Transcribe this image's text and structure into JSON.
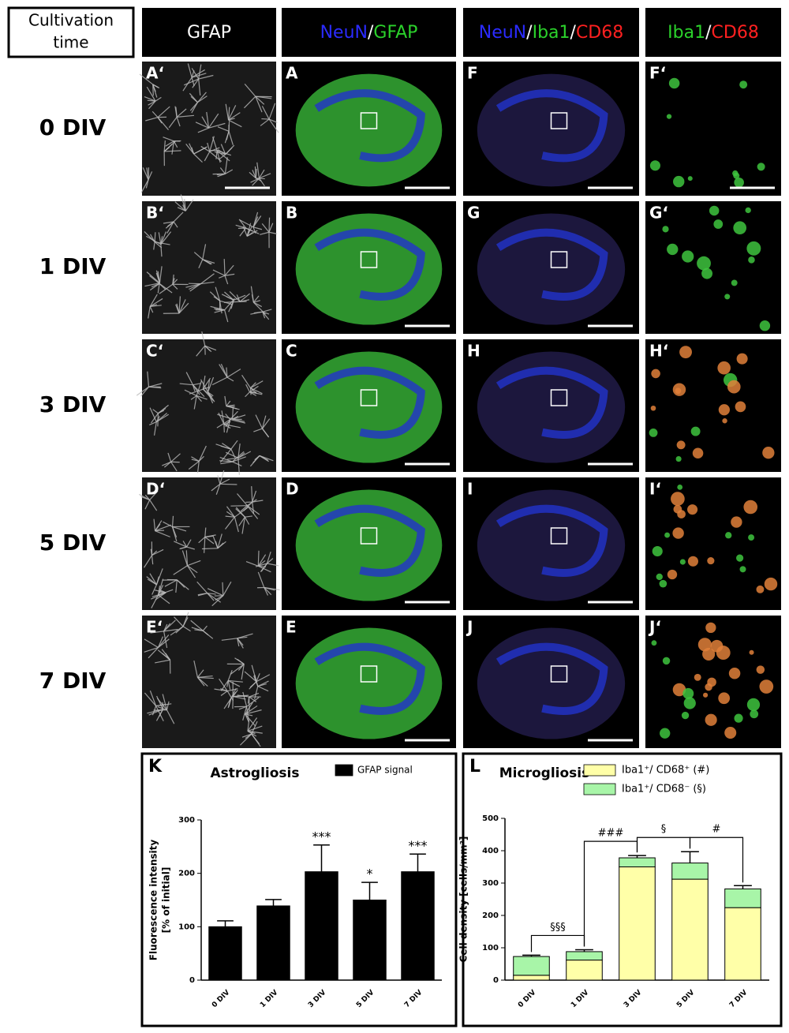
{
  "header": {
    "corner": [
      "Cultivation",
      "time"
    ],
    "columns": [
      [
        {
          "text": "GFAP",
          "color": "#ffffff"
        }
      ],
      [
        {
          "text": "NeuN",
          "color": "#2b2bff"
        },
        {
          "text": "/",
          "color": "#ffffff"
        },
        {
          "text": "GFAP",
          "color": "#2bd12b"
        }
      ],
      [
        {
          "text": "NeuN",
          "color": "#2b2bff"
        },
        {
          "text": "/",
          "color": "#ffffff"
        },
        {
          "text": "Iba1",
          "color": "#2bd12b"
        },
        {
          "text": "/",
          "color": "#ffffff"
        },
        {
          "text": "CD68",
          "color": "#ff2020"
        }
      ],
      [
        {
          "text": "Iba1",
          "color": "#2bd12b"
        },
        {
          "text": "/",
          "color": "#ffffff"
        },
        {
          "text": "CD68",
          "color": "#ff2020"
        }
      ]
    ]
  },
  "rows": [
    {
      "label": "0 DIV",
      "panels": [
        "A‘",
        "A",
        "F",
        "F‘"
      ]
    },
    {
      "label": "1 DIV",
      "panels": [
        "B‘",
        "B",
        "G",
        "G‘"
      ]
    },
    {
      "label": "3 DIV",
      "panels": [
        "C‘",
        "C",
        "H",
        "H‘"
      ]
    },
    {
      "label": "5 DIV",
      "panels": [
        "D‘",
        "D",
        "I",
        "I‘"
      ]
    },
    {
      "label": "7 DIV",
      "panels": [
        "E‘",
        "E",
        "J",
        "J‘"
      ]
    }
  ],
  "chart_data": [
    {
      "type": "bar",
      "panel": "K",
      "title": "Astrogliosis",
      "ylabel": [
        "Fluorescence intensity",
        "[% of initial]"
      ],
      "categories": [
        "0 DIV",
        "1 DIV",
        "3 DIV",
        "5 DIV",
        "7 DIV"
      ],
      "series": [
        {
          "name": "GFAP signal",
          "color": "#000000",
          "values": [
            100,
            139,
            203,
            150,
            203
          ],
          "errors": [
            11,
            12,
            50,
            33,
            33
          ]
        }
      ],
      "annotations": [
        null,
        null,
        "***",
        "*",
        "***"
      ],
      "ylim": [
        0,
        300
      ],
      "yticks": [
        0,
        100,
        200,
        300
      ]
    },
    {
      "type": "stacked_bar",
      "panel": "L",
      "title": "Microgliosis",
      "ylabel": [
        "Cell density [cells/mm²]"
      ],
      "categories": [
        "0 DIV",
        "1 DIV",
        "3 DIV",
        "5 DIV",
        "7 DIV"
      ],
      "series": [
        {
          "name": "Iba1⁺/ CD68⁺  (#)",
          "color": "#ffffa8",
          "values": [
            15,
            62,
            350,
            312,
            224
          ]
        },
        {
          "name": "Iba1⁺/ CD68⁻  (§)",
          "color": "#a8f5a8",
          "values": [
            58,
            26,
            28,
            50,
            58
          ],
          "errors": [
            4,
            6,
            7,
            35,
            10
          ]
        }
      ],
      "comparisons": [
        {
          "from": "0 DIV",
          "to": "1 DIV",
          "label": "§§§"
        },
        {
          "from": "1 DIV",
          "to": "3 DIV",
          "label": "###"
        },
        {
          "from": "3 DIV",
          "to": "5 DIV",
          "label": "§"
        },
        {
          "from": "5 DIV",
          "to": "7 DIV",
          "label": "#"
        }
      ],
      "ylim": [
        0,
        500
      ],
      "yticks": [
        0,
        100,
        200,
        300,
        400,
        500
      ]
    }
  ]
}
